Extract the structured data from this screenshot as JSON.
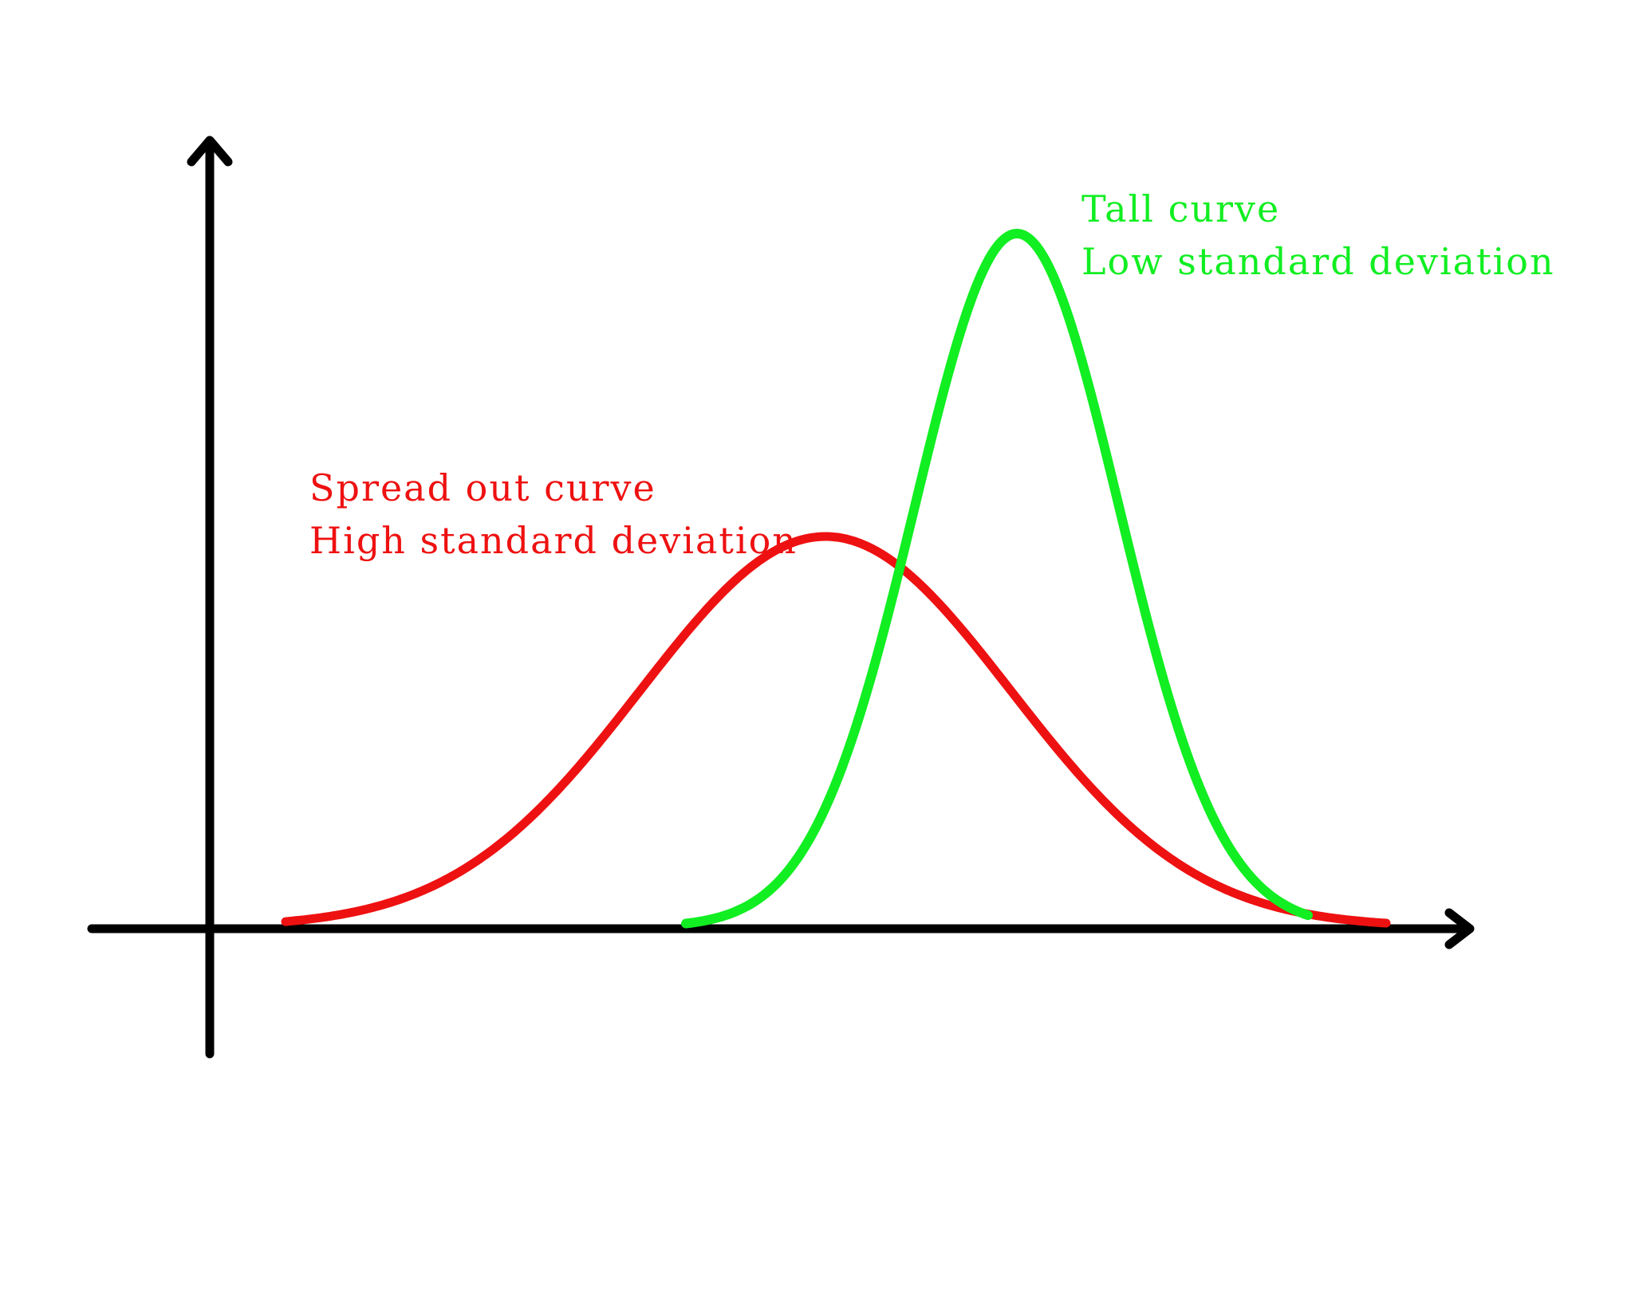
{
  "colors": {
    "background": "#ffffff",
    "axis": "#000000",
    "spread_curve": "#ee1111",
    "tall_curve": "#11ee22"
  },
  "labels": {
    "spread_line1": "Spread out curve",
    "spread_line2": "High standard deviation",
    "tall_line1": "Tall curve",
    "tall_line2": "Low standard deviation"
  },
  "chart_data": {
    "type": "line",
    "grid": false,
    "series": [
      {
        "name": "Spread out curve",
        "shape": "normal",
        "relative_mean": 0.5,
        "relative_spread": "high",
        "relative_peak": 0.57
      },
      {
        "name": "Tall curve",
        "shape": "normal",
        "relative_mean": 0.72,
        "relative_spread": "low",
        "relative_peak": 1.0
      }
    ]
  }
}
